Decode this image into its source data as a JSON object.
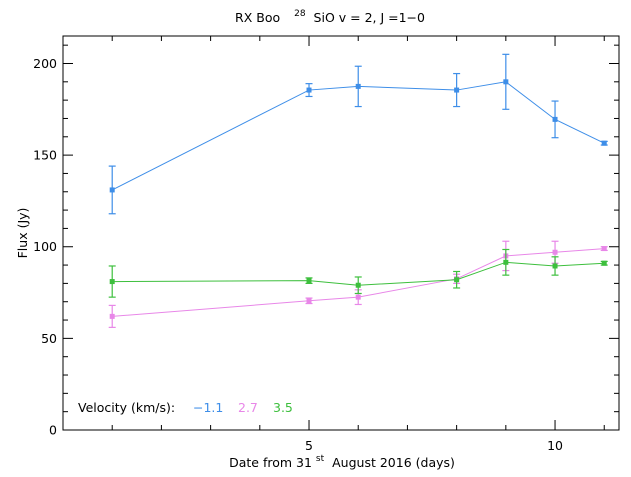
{
  "chart_data": {
    "type": "line",
    "title": {
      "pre": "RX Boo",
      "isotope_sup": "28",
      "post": "SiO v = 2, J =1−0"
    },
    "xlabel": {
      "pre": "Date from 31",
      "sup": "st",
      "post": "August 2016 (days)"
    },
    "ylabel": "Flux (Jy)",
    "xlim": [
      0,
      11.3
    ],
    "ylim": [
      0,
      215
    ],
    "x_ticks": [
      5,
      10
    ],
    "x_tick_labels": [
      "5",
      "10"
    ],
    "x_minor_ticks": [
      1,
      2,
      3,
      4,
      6,
      7,
      8,
      9,
      11
    ],
    "y_ticks": [
      0,
      50,
      100,
      150,
      200
    ],
    "y_tick_labels": [
      "0",
      "50",
      "100",
      "150",
      "200"
    ],
    "y_minor_step": 10,
    "grid": false,
    "legend": {
      "placement": "bottom-left",
      "title": "Velocity (km/s):"
    },
    "series": [
      {
        "name": "−1.1",
        "color": "#3e8ee8",
        "x": [
          1,
          5,
          6,
          8,
          9,
          10,
          11
        ],
        "y": [
          131,
          185.5,
          187.5,
          185.5,
          190,
          169.5,
          156.5
        ],
        "err": [
          13,
          3.5,
          11,
          9,
          15,
          10,
          1
        ]
      },
      {
        "name": "2.7",
        "color": "#e887e8",
        "x": [
          1,
          5,
          6,
          8,
          9,
          10,
          11
        ],
        "y": [
          62,
          70.5,
          72.5,
          82.5,
          95,
          97,
          99
        ],
        "err": [
          6,
          1.5,
          4,
          2.5,
          8,
          6,
          1
        ]
      },
      {
        "name": "3.5",
        "color": "#3dbf3d",
        "x": [
          1,
          5,
          6,
          8,
          9,
          10,
          11
        ],
        "y": [
          81,
          81.5,
          79,
          82,
          91.5,
          89.5,
          91
        ],
        "err": [
          8.5,
          1.5,
          4.5,
          4.5,
          7,
          5,
          1
        ]
      }
    ]
  }
}
